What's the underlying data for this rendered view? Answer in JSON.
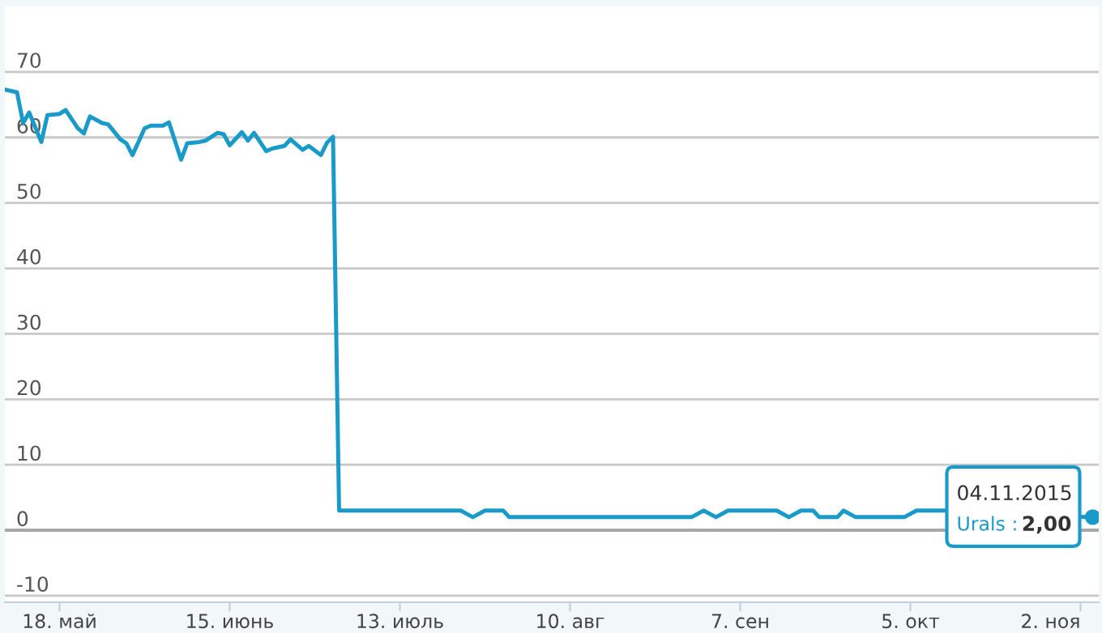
{
  "chart_data": {
    "type": "line",
    "x": [
      "2015-05-09",
      "2015-05-11",
      "2015-05-12",
      "2015-05-13",
      "2015-05-15",
      "2015-05-16",
      "2015-05-18",
      "2015-05-19",
      "2015-05-21",
      "2015-05-22",
      "2015-05-23",
      "2015-05-25",
      "2015-05-26",
      "2015-05-28",
      "2015-05-29",
      "2015-05-30",
      "2015-06-01",
      "2015-06-02",
      "2015-06-04",
      "2015-06-05",
      "2015-06-07",
      "2015-06-08",
      "2015-06-10",
      "2015-06-11",
      "2015-06-13",
      "2015-06-14",
      "2015-06-15",
      "2015-06-17",
      "2015-06-18",
      "2015-06-19",
      "2015-06-21",
      "2015-06-22",
      "2015-06-24",
      "2015-06-25",
      "2015-06-27",
      "2015-06-28",
      "2015-06-30",
      "2015-07-01",
      "2015-07-02",
      "2015-07-03",
      "2015-07-23",
      "2015-07-25",
      "2015-07-27",
      "2015-07-30",
      "2015-07-31",
      "2015-08-30",
      "2015-09-01",
      "2015-09-03",
      "2015-09-05",
      "2015-09-13",
      "2015-09-15",
      "2015-09-17",
      "2015-09-19",
      "2015-09-20",
      "2015-09-23",
      "2015-09-24",
      "2015-09-26",
      "2015-10-04",
      "2015-10-06",
      "2015-10-11",
      "2015-11-03",
      "2015-11-04"
    ],
    "series": [
      {
        "name": "Urals",
        "color": "#1a9ac9",
        "values": [
          67.3,
          66.9,
          62.2,
          63.8,
          59.3,
          63.4,
          63.6,
          64.2,
          61.4,
          60.6,
          63.2,
          62.2,
          62.0,
          59.7,
          59.1,
          57.3,
          61.4,
          61.8,
          61.8,
          62.3,
          56.6,
          59.1,
          59.3,
          59.5,
          60.7,
          60.5,
          58.8,
          60.8,
          59.5,
          60.7,
          57.9,
          58.3,
          58.7,
          59.7,
          58.1,
          58.7,
          57.3,
          59.2,
          60.1,
          3,
          3,
          2,
          3,
          3,
          2,
          2,
          3,
          2,
          3,
          3,
          2,
          3,
          3,
          2,
          2,
          3,
          2,
          2,
          3,
          3,
          2,
          2
        ]
      }
    ],
    "xlim": [
      "2015-05-09",
      "2015-11-05"
    ],
    "xticks": [
      {
        "value": "2015-05-18",
        "label": "18. май"
      },
      {
        "value": "2015-06-15",
        "label": "15. июнь"
      },
      {
        "value": "2015-07-13",
        "label": "13. июль"
      },
      {
        "value": "2015-08-10",
        "label": "10. авг"
      },
      {
        "value": "2015-09-07",
        "label": "7. сен"
      },
      {
        "value": "2015-10-05",
        "label": "5. окт"
      },
      {
        "value": "2015-11-02",
        "label": "2. ноя"
      }
    ],
    "ylim": [
      -11,
      80
    ],
    "yticks": [
      -10,
      0,
      10,
      20,
      30,
      40,
      50,
      60,
      70
    ],
    "grid": "y",
    "legend": false,
    "marker": "none",
    "line_style": "solid",
    "annotations": [
      "04.11.2015",
      ":",
      {
        "text": "2,00",
        "x": "2015-11-04",
        "y": 2
      }
    ]
  }
}
